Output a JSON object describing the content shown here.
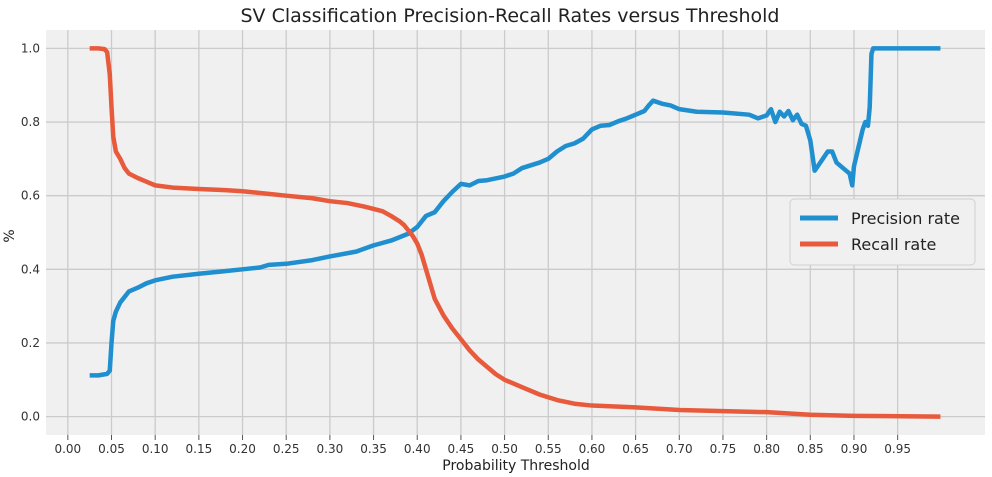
{
  "chart_data": {
    "type": "line",
    "title": "SV Classification Precision-Recall Rates versus Threshold",
    "xlabel": "Probability Threshold",
    "ylabel": "%",
    "xlim": [
      -0.025,
      1.05
    ],
    "ylim": [
      -0.05,
      1.05
    ],
    "x_ticks": [
      "0.00",
      "0.05",
      "0.10",
      "0.15",
      "0.20",
      "0.25",
      "0.30",
      "0.35",
      "0.40",
      "0.45",
      "0.50",
      "0.55",
      "0.60",
      "0.65",
      "0.70",
      "0.75",
      "0.80",
      "0.85",
      "0.90",
      "0.95"
    ],
    "y_ticks": [
      "0.0",
      "0.2",
      "0.4",
      "0.6",
      "0.8",
      "1.0"
    ],
    "grid": true,
    "legend_position": "right",
    "background": "#f0f0f0",
    "series": [
      {
        "name": "Precision rate",
        "color": "#1f8fd0",
        "points": [
          [
            0.025,
            0.112
          ],
          [
            0.035,
            0.112
          ],
          [
            0.045,
            0.116
          ],
          [
            0.048,
            0.125
          ],
          [
            0.05,
            0.2
          ],
          [
            0.052,
            0.26
          ],
          [
            0.055,
            0.285
          ],
          [
            0.06,
            0.31
          ],
          [
            0.065,
            0.325
          ],
          [
            0.07,
            0.34
          ],
          [
            0.08,
            0.35
          ],
          [
            0.09,
            0.362
          ],
          [
            0.1,
            0.37
          ],
          [
            0.12,
            0.38
          ],
          [
            0.15,
            0.388
          ],
          [
            0.18,
            0.395
          ],
          [
            0.2,
            0.4
          ],
          [
            0.22,
            0.405
          ],
          [
            0.23,
            0.412
          ],
          [
            0.25,
            0.415
          ],
          [
            0.28,
            0.425
          ],
          [
            0.3,
            0.435
          ],
          [
            0.33,
            0.448
          ],
          [
            0.35,
            0.465
          ],
          [
            0.37,
            0.478
          ],
          [
            0.39,
            0.497
          ],
          [
            0.4,
            0.515
          ],
          [
            0.41,
            0.545
          ],
          [
            0.42,
            0.555
          ],
          [
            0.43,
            0.585
          ],
          [
            0.44,
            0.61
          ],
          [
            0.45,
            0.632
          ],
          [
            0.46,
            0.628
          ],
          [
            0.47,
            0.64
          ],
          [
            0.48,
            0.642
          ],
          [
            0.5,
            0.652
          ],
          [
            0.51,
            0.66
          ],
          [
            0.52,
            0.675
          ],
          [
            0.54,
            0.69
          ],
          [
            0.55,
            0.7
          ],
          [
            0.56,
            0.72
          ],
          [
            0.57,
            0.735
          ],
          [
            0.58,
            0.742
          ],
          [
            0.59,
            0.755
          ],
          [
            0.6,
            0.78
          ],
          [
            0.61,
            0.79
          ],
          [
            0.62,
            0.792
          ],
          [
            0.63,
            0.802
          ],
          [
            0.64,
            0.81
          ],
          [
            0.65,
            0.82
          ],
          [
            0.66,
            0.83
          ],
          [
            0.665,
            0.845
          ],
          [
            0.67,
            0.858
          ],
          [
            0.68,
            0.85
          ],
          [
            0.69,
            0.845
          ],
          [
            0.7,
            0.835
          ],
          [
            0.72,
            0.828
          ],
          [
            0.75,
            0.826
          ],
          [
            0.78,
            0.82
          ],
          [
            0.79,
            0.81
          ],
          [
            0.8,
            0.818
          ],
          [
            0.805,
            0.835
          ],
          [
            0.81,
            0.8
          ],
          [
            0.815,
            0.828
          ],
          [
            0.82,
            0.815
          ],
          [
            0.825,
            0.83
          ],
          [
            0.83,
            0.805
          ],
          [
            0.835,
            0.82
          ],
          [
            0.84,
            0.795
          ],
          [
            0.845,
            0.79
          ],
          [
            0.85,
            0.75
          ],
          [
            0.855,
            0.668
          ],
          [
            0.86,
            0.685
          ],
          [
            0.87,
            0.72
          ],
          [
            0.875,
            0.72
          ],
          [
            0.88,
            0.69
          ],
          [
            0.89,
            0.67
          ],
          [
            0.895,
            0.66
          ],
          [
            0.898,
            0.628
          ],
          [
            0.9,
            0.68
          ],
          [
            0.905,
            0.73
          ],
          [
            0.91,
            0.78
          ],
          [
            0.913,
            0.8
          ],
          [
            0.916,
            0.79
          ],
          [
            0.918,
            0.84
          ],
          [
            0.92,
            0.985
          ],
          [
            0.922,
            1.0
          ],
          [
            0.95,
            1.0
          ],
          [
            0.999,
            1.0
          ]
        ]
      },
      {
        "name": "Recall rate",
        "color": "#e85a3c",
        "points": [
          [
            0.025,
            1.0
          ],
          [
            0.035,
            1.0
          ],
          [
            0.042,
            0.998
          ],
          [
            0.045,
            0.99
          ],
          [
            0.048,
            0.93
          ],
          [
            0.05,
            0.84
          ],
          [
            0.052,
            0.76
          ],
          [
            0.055,
            0.72
          ],
          [
            0.06,
            0.7
          ],
          [
            0.065,
            0.675
          ],
          [
            0.07,
            0.66
          ],
          [
            0.08,
            0.648
          ],
          [
            0.09,
            0.638
          ],
          [
            0.1,
            0.628
          ],
          [
            0.12,
            0.622
          ],
          [
            0.15,
            0.618
          ],
          [
            0.18,
            0.615
          ],
          [
            0.2,
            0.612
          ],
          [
            0.23,
            0.605
          ],
          [
            0.25,
            0.6
          ],
          [
            0.28,
            0.593
          ],
          [
            0.3,
            0.585
          ],
          [
            0.32,
            0.58
          ],
          [
            0.34,
            0.57
          ],
          [
            0.36,
            0.558
          ],
          [
            0.37,
            0.545
          ],
          [
            0.38,
            0.53
          ],
          [
            0.385,
            0.52
          ],
          [
            0.39,
            0.505
          ],
          [
            0.395,
            0.49
          ],
          [
            0.4,
            0.47
          ],
          [
            0.405,
            0.44
          ],
          [
            0.41,
            0.4
          ],
          [
            0.415,
            0.36
          ],
          [
            0.42,
            0.32
          ],
          [
            0.43,
            0.275
          ],
          [
            0.44,
            0.24
          ],
          [
            0.45,
            0.21
          ],
          [
            0.46,
            0.18
          ],
          [
            0.47,
            0.155
          ],
          [
            0.48,
            0.135
          ],
          [
            0.49,
            0.115
          ],
          [
            0.5,
            0.1
          ],
          [
            0.52,
            0.08
          ],
          [
            0.54,
            0.06
          ],
          [
            0.56,
            0.045
          ],
          [
            0.58,
            0.035
          ],
          [
            0.6,
            0.03
          ],
          [
            0.65,
            0.025
          ],
          [
            0.7,
            0.018
          ],
          [
            0.75,
            0.015
          ],
          [
            0.8,
            0.012
          ],
          [
            0.85,
            0.005
          ],
          [
            0.9,
            0.002
          ],
          [
            0.999,
            0.0
          ]
        ]
      }
    ]
  }
}
